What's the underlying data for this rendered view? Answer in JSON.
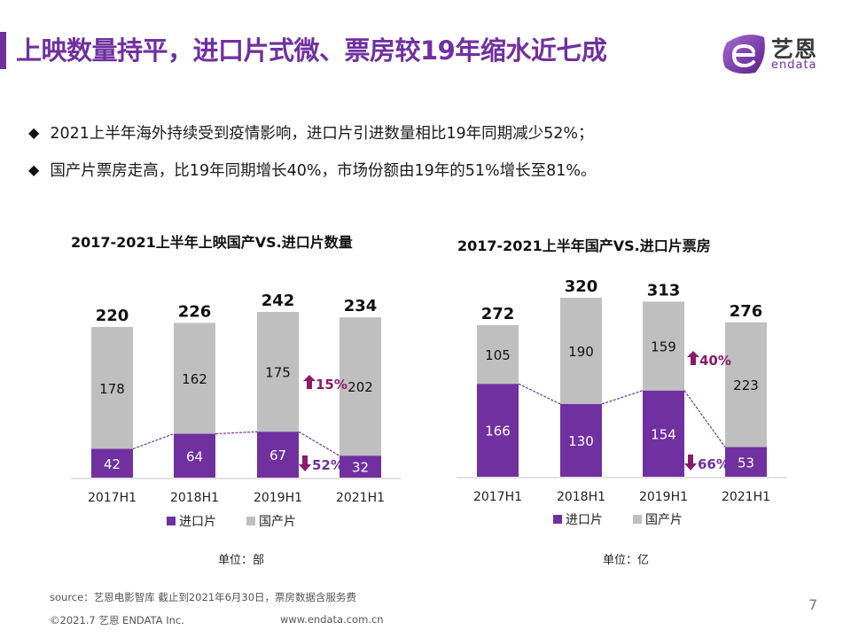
{
  "header": {
    "title": "上映数量持平，进口片式微、票房较19年缩水近七成",
    "logo_cn": "艺恩",
    "logo_en": "endata"
  },
  "bullets": [
    "2021上半年海外持续受到疫情影响，进口片引进数量相比19年同期减少52%；",
    "国产片票房走高，比19年同期增长40%，市场份额由19年的51%增长至81%。"
  ],
  "colors": {
    "accent": "#7030a0",
    "imported": "#7030a0",
    "domestic": "#bfbfbf",
    "arrow": "#8b1a6b"
  },
  "chart_data": [
    {
      "type": "bar",
      "stacked": true,
      "title": "2017-2021上半年上映国产VS.进口片数量",
      "categories": [
        "2017H1",
        "2018H1",
        "2019H1",
        "2021H1"
      ],
      "series": [
        {
          "name": "进口片",
          "values": [
            42,
            64,
            67,
            32
          ]
        },
        {
          "name": "国产片",
          "values": [
            178,
            162,
            175,
            202
          ]
        }
      ],
      "totals": [
        220,
        226,
        242,
        234
      ],
      "unit_label": "单位：部",
      "legend_position": "bottom",
      "ylim": [
        0,
        242
      ],
      "grid": false,
      "annotations": [
        {
          "text": "15%",
          "direction": "up",
          "series": "国产片",
          "between": [
            "2019H1",
            "2021H1"
          ]
        },
        {
          "text": "52%",
          "direction": "down",
          "series": "进口片",
          "between": [
            "2019H1",
            "2021H1"
          ]
        }
      ]
    },
    {
      "type": "bar",
      "stacked": true,
      "title": "2017-2021上半年国产VS.进口片票房",
      "categories": [
        "2017H1",
        "2018H1",
        "2019H1",
        "2021H1"
      ],
      "series": [
        {
          "name": "进口片",
          "values": [
            166,
            130,
            154,
            53
          ]
        },
        {
          "name": "国产片",
          "values": [
            105,
            190,
            159,
            223
          ]
        }
      ],
      "totals": [
        272,
        320,
        313,
        276
      ],
      "unit_label": "单位：亿",
      "legend_position": "bottom",
      "ylim": [
        0,
        320
      ],
      "grid": false,
      "annotations": [
        {
          "text": "40%",
          "direction": "up",
          "series": "国产片",
          "between": [
            "2019H1",
            "2021H1"
          ]
        },
        {
          "text": "66%",
          "direction": "down",
          "series": "进口片",
          "between": [
            "2019H1",
            "2021H1"
          ]
        }
      ]
    }
  ],
  "footer": {
    "source": "source：艺恩电影智库     截止到2021年6月30日，票房数据含服务费",
    "copyright": "©2021.7 艺恩 ENDATA Inc.",
    "website": "www.endata.com.cn",
    "page_number": "7"
  }
}
